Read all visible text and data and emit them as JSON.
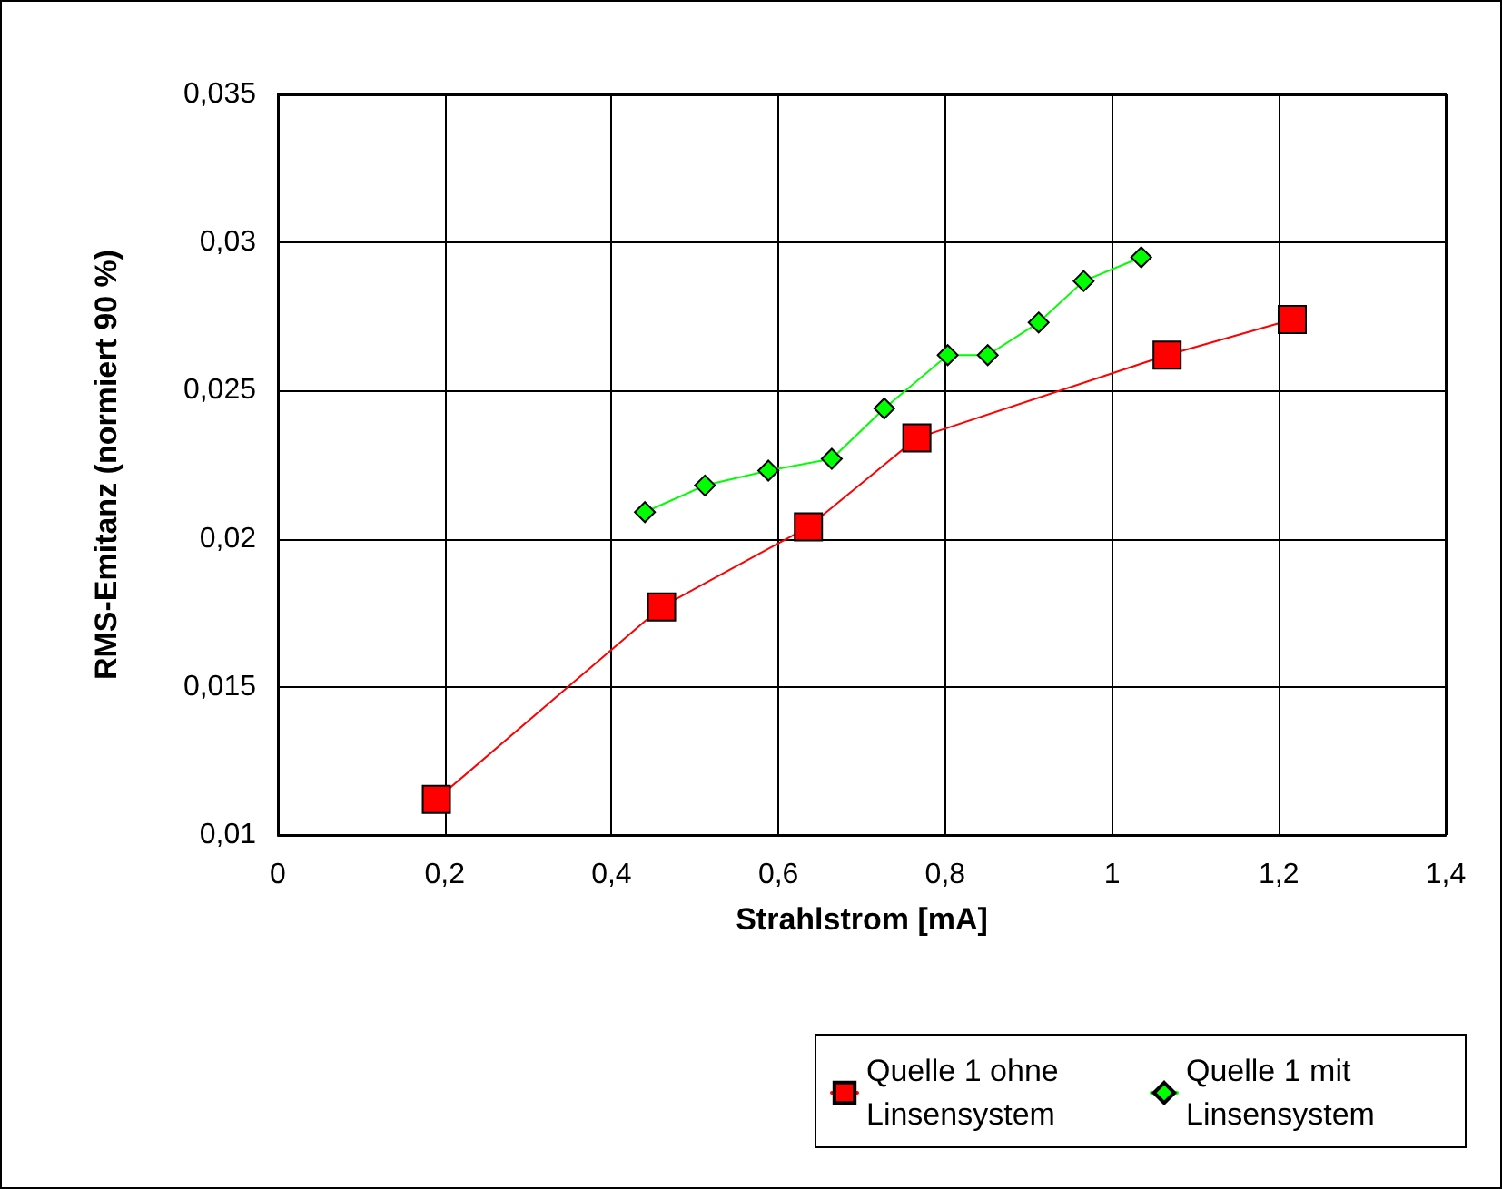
{
  "chart_data": {
    "type": "line",
    "xlabel": "Strahlstrom [mA]",
    "ylabel": "RMS-Emitanz (normiert 90 %)",
    "xlim": [
      0,
      1.4
    ],
    "xticks": [
      0,
      {
        "value": 0.2,
        "label": "0,2"
      },
      {
        "value": 0.4,
        "label": "0,4"
      },
      {
        "value": 0.6,
        "label": "0,6"
      },
      {
        "value": 0.8,
        "label": "0,8"
      },
      1,
      {
        "value": 1.2,
        "label": "1,2"
      },
      {
        "value": 1.4,
        "label": "1,4"
      }
    ],
    "ylim": [
      0.01,
      0.035
    ],
    "yticks": [
      {
        "value": 0.01,
        "label": "0,01"
      },
      {
        "value": 0.015,
        "label": "0,015"
      },
      {
        "value": 0.02,
        "label": "0,02"
      },
      {
        "value": 0.025,
        "label": "0,025"
      },
      {
        "value": 0.03,
        "label": "0,03"
      },
      {
        "value": 0.035,
        "label": "0,035"
      }
    ],
    "grid": true,
    "legend": "bottom right",
    "line_style": "solid",
    "series": [
      {
        "name": "Quelle 1 ohne Linsensystem",
        "color": "#ff0000",
        "marker": "square",
        "x": [
          0.19,
          0.46,
          0.636,
          0.766,
          1.066,
          1.216
        ],
        "values": [
          0.0112,
          0.0177,
          0.0204,
          0.0234,
          0.0262,
          0.0274
        ]
      },
      {
        "name": "Quelle 1 mit Linsensystem",
        "color": "#00ff00",
        "marker": "diamond",
        "x": [
          0.44,
          0.512,
          0.588,
          0.664,
          0.727,
          0.803,
          0.851,
          0.912,
          0.966,
          1.035
        ],
        "values": [
          0.0209,
          0.0218,
          0.0223,
          0.0227,
          0.0244,
          0.0262,
          0.0262,
          0.0273,
          0.0287,
          0.0295
        ]
      }
    ]
  }
}
